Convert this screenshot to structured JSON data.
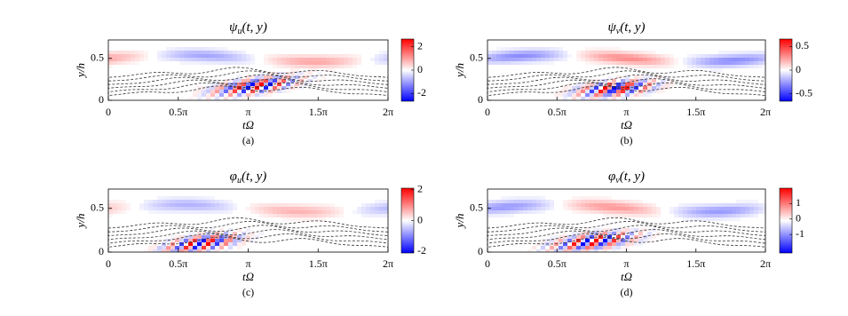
{
  "chart_data": [
    {
      "type": "heatmap",
      "title": "ψ",
      "title_subscript": "u",
      "title_args": "(t, y)",
      "x_label": "tΩ",
      "y_label": "y/h",
      "caption": "(a)",
      "xlim": [
        0,
        6.2832
      ],
      "xticks": [
        0,
        {
          "value": 1.5708,
          "label": "0.5π"
        },
        {
          "value": 3.1416,
          "label": "π"
        },
        {
          "value": 4.7124,
          "label": "1.5π"
        },
        {
          "value": 6.2832,
          "label": "2π"
        }
      ],
      "ylim": [
        0,
        0.72
      ],
      "yticks": [
        0,
        0.5
      ],
      "clim": [
        -2.65,
        2.65
      ],
      "cticks": [
        -2,
        0,
        2
      ],
      "colormap": [
        "#0000ff",
        "#ffffff",
        "#ff0000"
      ],
      "contours": true
    },
    {
      "type": "heatmap",
      "title": "ψ",
      "title_subscript": "v",
      "title_args": "(t, y)",
      "x_label": "tΩ",
      "y_label": "y/h",
      "caption": "(b)",
      "xlim": [
        0,
        6.2832
      ],
      "xticks": [
        0,
        {
          "value": 1.5708,
          "label": "0.5π"
        },
        {
          "value": 3.1416,
          "label": "π"
        },
        {
          "value": 4.7124,
          "label": "1.5π"
        },
        {
          "value": 6.2832,
          "label": "2π"
        }
      ],
      "ylim": [
        0,
        0.72
      ],
      "yticks": [
        0,
        0.5
      ],
      "clim": [
        -0.66,
        0.66
      ],
      "cticks": [
        -0.5,
        0,
        0.5
      ],
      "colormap": [
        "#0000ff",
        "#ffffff",
        "#ff0000"
      ],
      "contours": true
    },
    {
      "type": "heatmap",
      "title": "φ",
      "title_subscript": "u",
      "title_args": "(t, y)",
      "x_label": "tΩ",
      "y_label": "y/h",
      "caption": "(c)",
      "xlim": [
        0,
        6.2832
      ],
      "xticks": [
        0,
        {
          "value": 1.5708,
          "label": "0.5π"
        },
        {
          "value": 3.1416,
          "label": "π"
        },
        {
          "value": 4.7124,
          "label": "1.5π"
        },
        {
          "value": 6.2832,
          "label": "2π"
        }
      ],
      "ylim": [
        0,
        0.72
      ],
      "yticks": [
        0,
        0.5
      ],
      "clim": [
        -2.1,
        2.1
      ],
      "cticks": [
        -2,
        0,
        2
      ],
      "colormap": [
        "#0000ff",
        "#ffffff",
        "#ff0000"
      ],
      "contours": true
    },
    {
      "type": "heatmap",
      "title": "φ",
      "title_subscript": "v",
      "title_args": "(t, y)",
      "x_label": "tΩ",
      "y_label": "y/h",
      "caption": "(d)",
      "xlim": [
        0,
        6.2832
      ],
      "xticks": [
        0,
        {
          "value": 1.5708,
          "label": "0.5π"
        },
        {
          "value": 3.1416,
          "label": "π"
        },
        {
          "value": 4.7124,
          "label": "1.5π"
        },
        {
          "value": 6.2832,
          "label": "2π"
        }
      ],
      "ylim": [
        0,
        0.72
      ],
      "yticks": [
        0,
        0.5
      ],
      "clim": [
        -2.2,
        2
      ],
      "cticks": [
        -1,
        0,
        1
      ],
      "colormap": [
        "#0000ff",
        "#ffffff",
        "#ff0000"
      ],
      "contours": true
    }
  ]
}
